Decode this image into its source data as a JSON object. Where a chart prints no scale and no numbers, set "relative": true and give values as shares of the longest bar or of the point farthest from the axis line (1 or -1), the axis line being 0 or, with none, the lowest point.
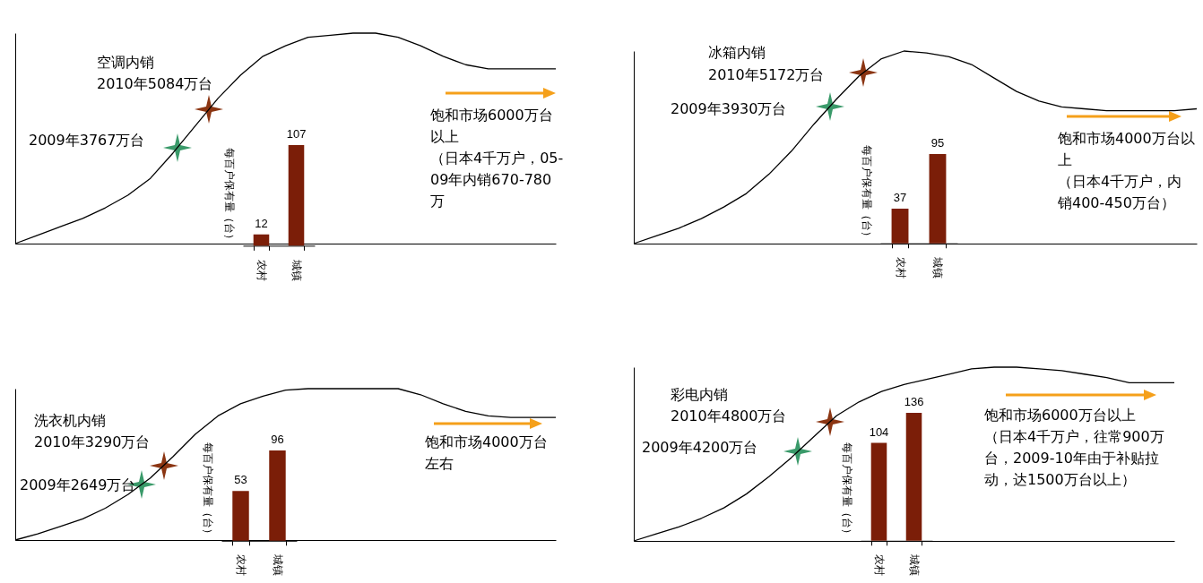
{
  "chart_data": [
    {
      "type": "line",
      "relative": true,
      "categories": [
        null,
        null,
        null,
        null,
        null,
        null,
        null,
        null,
        null,
        null,
        null,
        null,
        null,
        null,
        null,
        null,
        null,
        null,
        null,
        null,
        null,
        null,
        null,
        null,
        null
      ],
      "series": [
        {
          "color": "#000000",
          "values": [
            0,
            0.04,
            0.08,
            0.12,
            0.17,
            0.23,
            0.31,
            0.43,
            0.56,
            0.69,
            0.8,
            0.89,
            0.94,
            0.98,
            0.99,
            1,
            1,
            0.98,
            0.94,
            0.89,
            0.85,
            0.83,
            0.83,
            0.83,
            0.83
          ]
        }
      ],
      "annotations": [
        "空调内销",
        "2010年5084万台",
        "2009年3767万台",
        "饱和市场6000万台以上",
        "（日本4千万户，05-09年内销670-780万"
      ]
    },
    {
      "type": "bar",
      "categories": [
        "农村",
        "城镇"
      ],
      "values": [
        12,
        107
      ],
      "color": "#7b1e08",
      "data_labels": true,
      "ylabel": "每百户保有量（台）"
    },
    {
      "type": "line",
      "relative": true,
      "categories": [
        null,
        null,
        null,
        null,
        null,
        null,
        null,
        null,
        null,
        null,
        null,
        null,
        null,
        null,
        null,
        null,
        null,
        null,
        null,
        null,
        null,
        null,
        null,
        null,
        null,
        null
      ],
      "series": [
        {
          "color": "#000000",
          "values": [
            0,
            0.04,
            0.08,
            0.13,
            0.19,
            0.26,
            0.36,
            0.48,
            0.62,
            0.75,
            0.87,
            0.96,
            1,
            0.99,
            0.97,
            0.93,
            0.86,
            0.79,
            0.74,
            0.71,
            0.7,
            0.69,
            0.69,
            0.69,
            0.69,
            0.7
          ]
        }
      ],
      "annotations": [
        "冰箱内销",
        "2010年5172万台",
        "2009年3930万台",
        "饱和市场4000万台以上",
        "（日本4千万户，内销400-450万台）"
      ]
    },
    {
      "type": "bar",
      "categories": [
        "农村",
        "城镇"
      ],
      "values": [
        37,
        95
      ],
      "color": "#7b1e08",
      "data_labels": true,
      "ylabel": "每百户保有量（台）"
    },
    {
      "type": "line",
      "relative": true,
      "categories": [
        null,
        null,
        null,
        null,
        null,
        null,
        null,
        null,
        null,
        null,
        null,
        null,
        null,
        null,
        null,
        null,
        null,
        null,
        null,
        null,
        null,
        null,
        null,
        null,
        null
      ],
      "series": [
        {
          "color": "#000000",
          "values": [
            0,
            0.04,
            0.09,
            0.14,
            0.21,
            0.3,
            0.41,
            0.55,
            0.7,
            0.82,
            0.9,
            0.95,
            0.99,
            1,
            1,
            1,
            1,
            1,
            0.96,
            0.9,
            0.85,
            0.82,
            0.81,
            0.81,
            0.81
          ]
        }
      ],
      "annotations": [
        "洗衣机内销",
        "2010年3290万台",
        "2009年2649万台",
        "饱和市场4000万台左右"
      ]
    },
    {
      "type": "bar",
      "categories": [
        "农村",
        "城镇"
      ],
      "values": [
        53,
        96
      ],
      "color": "#7b1e08",
      "data_labels": true,
      "ylabel": "每百户保有量（台）"
    },
    {
      "type": "line",
      "relative": true,
      "categories": [
        null,
        null,
        null,
        null,
        null,
        null,
        null,
        null,
        null,
        null,
        null,
        null,
        null,
        null,
        null,
        null,
        null,
        null,
        null,
        null,
        null,
        null,
        null,
        null,
        null
      ],
      "series": [
        {
          "color": "#000000",
          "values": [
            0,
            0.04,
            0.08,
            0.13,
            0.19,
            0.27,
            0.37,
            0.48,
            0.6,
            0.72,
            0.8,
            0.86,
            0.9,
            0.93,
            0.96,
            0.99,
            1,
            1,
            0.99,
            0.98,
            0.96,
            0.94,
            0.91,
            0.91,
            0.91
          ]
        }
      ],
      "annotations": [
        "彩电内销",
        "2010年4800万台",
        "2009年4200万台",
        "饱和市场6000万台以上",
        "（日本4千万户，往常900万台，2009-10年由于补贴拉动，达1500万台以上）"
      ]
    },
    {
      "type": "bar",
      "categories": [
        "农村",
        "城镇"
      ],
      "values": [
        104,
        136
      ],
      "color": "#7b1e08",
      "data_labels": true,
      "ylabel": "每百户保有量（台）"
    }
  ]
}
